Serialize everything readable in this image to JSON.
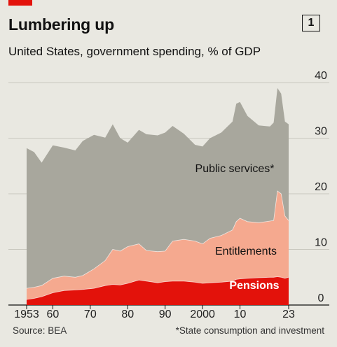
{
  "header": {
    "title": "Lumbering up",
    "badge": "1",
    "subtitle": "United States, government spending, % of GDP"
  },
  "footer": {
    "source": "Source: BEA",
    "footnote": "*State consumption and investment"
  },
  "colors": {
    "background": "#e9e8e1",
    "public_services": "#a8a79d",
    "entitlements": "#f5a98f",
    "pensions": "#e3120b",
    "brand_red": "#e3120b"
  },
  "chart_data": {
    "type": "area",
    "stacked": true,
    "x_tick_labels": [
      "1953",
      "60",
      "70",
      "80",
      "90",
      "2000",
      "10",
      "23"
    ],
    "x_tick_values": [
      1953,
      1960,
      1970,
      1980,
      1990,
      2000,
      2010,
      2023
    ],
    "y_tick_labels": [
      "0",
      "10",
      "20",
      "30",
      "40"
    ],
    "ylim": [
      0,
      40
    ],
    "xlim": [
      1953,
      2023
    ],
    "y_axis_side": "right",
    "grid": true,
    "x": [
      1953,
      1955,
      1957,
      1960,
      1963,
      1966,
      1968,
      1971,
      1974,
      1976,
      1978,
      1980,
      1983,
      1985,
      1988,
      1990,
      1992,
      1995,
      1998,
      2000,
      2002,
      2005,
      2008,
      2009,
      2010,
      2012,
      2015,
      2018,
      2019,
      2020,
      2021,
      2022,
      2023
    ],
    "series": [
      {
        "name": "Pensions",
        "cumulative": [
          1.0,
          1.2,
          1.5,
          2.2,
          2.6,
          2.7,
          2.8,
          3.0,
          3.5,
          3.7,
          3.6,
          3.9,
          4.5,
          4.3,
          4.0,
          4.2,
          4.3,
          4.3,
          4.1,
          3.9,
          4.0,
          4.1,
          4.3,
          4.6,
          4.7,
          4.8,
          4.9,
          5.0,
          5.0,
          5.1,
          5.0,
          4.8,
          5.0
        ]
      },
      {
        "name": "Entitlements",
        "cumulative": [
          3.0,
          3.2,
          3.5,
          4.8,
          5.2,
          5.0,
          5.3,
          6.5,
          8.0,
          10.0,
          9.7,
          10.5,
          11.0,
          9.8,
          9.6,
          9.7,
          11.5,
          11.8,
          11.5,
          11.0,
          12.0,
          12.5,
          13.5,
          15.0,
          15.6,
          15.0,
          14.8,
          15.1,
          15.2,
          20.5,
          20.0,
          16.0,
          15.2
        ]
      },
      {
        "name": "Public services*",
        "cumulative": [
          28.2,
          27.5,
          25.6,
          28.7,
          28.3,
          27.8,
          29.5,
          30.6,
          30.1,
          32.5,
          30.0,
          29.2,
          31.5,
          30.7,
          30.5,
          31.0,
          32.2,
          30.8,
          28.8,
          28.5,
          30.0,
          31.0,
          33.0,
          36.2,
          36.5,
          34.0,
          32.3,
          32.1,
          32.8,
          39.0,
          38.0,
          33.0,
          32.5
        ]
      }
    ],
    "annotations": [
      "Public services*",
      "Entitlements",
      "Pensions"
    ]
  }
}
